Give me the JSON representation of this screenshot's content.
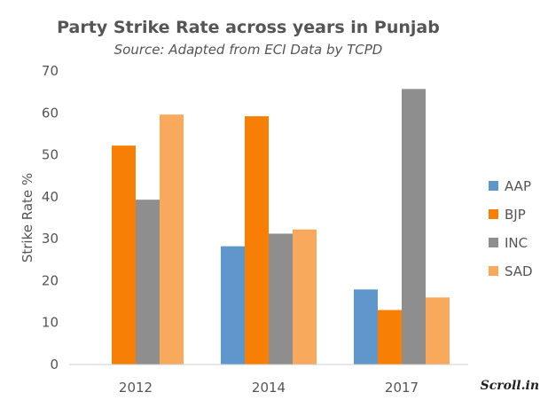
{
  "chart_data": {
    "type": "bar",
    "title": "Party Strike Rate across years in Punjab",
    "subtitle": "Source: Adapted from ECI Data by TCPD",
    "xlabel": "",
    "ylabel": "Strike Rate %",
    "categories": [
      "2012",
      "2014",
      "2017"
    ],
    "ylim": [
      0,
      70
    ],
    "yticks": [
      0,
      10,
      20,
      30,
      40,
      50,
      60,
      70
    ],
    "grid": false,
    "legend_position": "right",
    "series": [
      {
        "name": "AAP",
        "color": "#5f97cc",
        "values": [
          0,
          28.2,
          17.9
        ]
      },
      {
        "name": "BJP",
        "color": "#f87f06",
        "values": [
          52.2,
          59.2,
          13.0
        ]
      },
      {
        "name": "INC",
        "color": "#8e8e8e",
        "values": [
          39.3,
          31.2,
          65.7
        ]
      },
      {
        "name": "SAD",
        "color": "#f9a95c",
        "values": [
          59.6,
          32.2,
          16.0
        ]
      }
    ]
  },
  "brand": "Scroll.in"
}
